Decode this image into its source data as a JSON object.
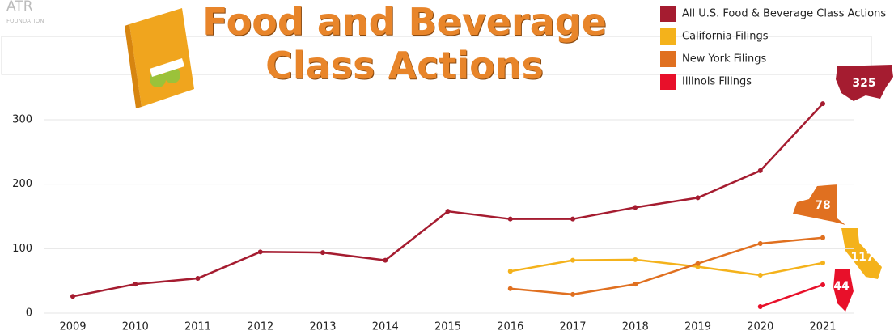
{
  "logo": {
    "name": "ATR",
    "subtitle": "FOUNDATION"
  },
  "chart_data": {
    "type": "line",
    "title": "Food and Beverage Class Actions",
    "categories": [
      "2009",
      "2010",
      "2011",
      "2012",
      "2013",
      "2014",
      "2015",
      "2016",
      "2017",
      "2018",
      "2019",
      "2020",
      "2021"
    ],
    "series": [
      {
        "name": "All U.S. Food & Beverage Class Actions",
        "color": "#a51c30",
        "values": [
          26,
          45,
          54,
          95,
          94,
          82,
          158,
          146,
          146,
          164,
          179,
          221,
          325
        ]
      },
      {
        "name": "California Filings",
        "color": "#f4b21b",
        "values": [
          null,
          null,
          null,
          null,
          null,
          null,
          null,
          65,
          82,
          83,
          72,
          59,
          78
        ]
      },
      {
        "name": "New York Filings",
        "color": "#e07020",
        "values": [
          null,
          null,
          null,
          null,
          null,
          null,
          null,
          38,
          29,
          45,
          77,
          108,
          117
        ]
      },
      {
        "name": "Illinois Filings",
        "color": "#e8102a",
        "values": [
          null,
          null,
          null,
          null,
          null,
          null,
          null,
          null,
          null,
          null,
          null,
          10,
          44
        ]
      }
    ],
    "ylim": [
      0,
      330
    ],
    "yticks": [
      0,
      100,
      200,
      300
    ],
    "grid": true,
    "legend": "top-right"
  }
}
